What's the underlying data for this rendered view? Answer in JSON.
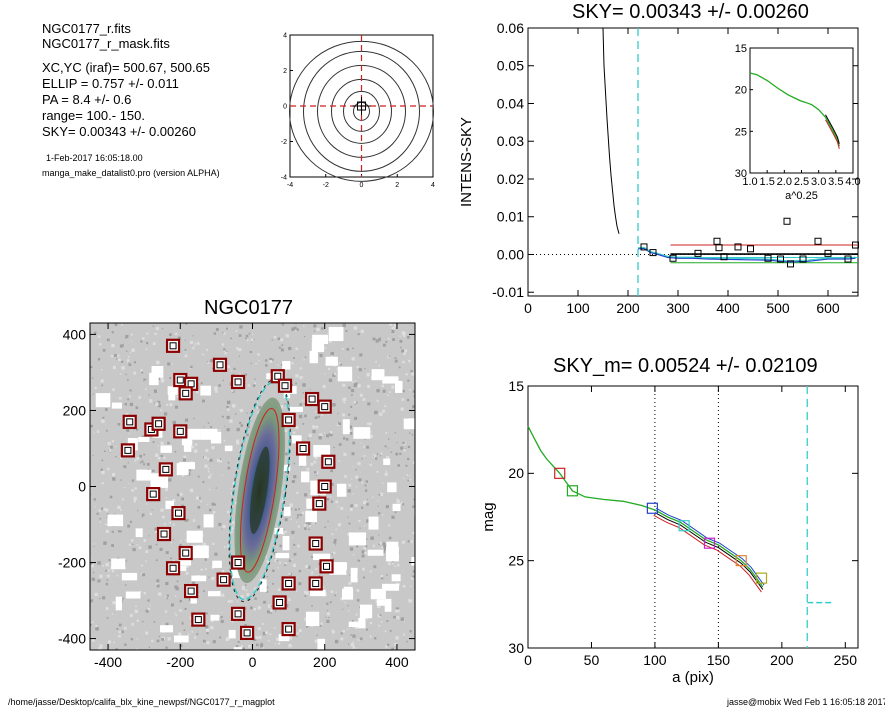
{
  "header": {
    "file_line": "NGC0177_r.fits",
    "mask_line": "NGC0177_r_mask.fits",
    "center_line": "XC,YC (iraf)=   500.67, 500.65",
    "ellip_line": "ELLIP = 0.757 +/- 0.011",
    "pa_line": "PA    =   8.4 +/-   0.6",
    "range_line": "range=  100.-  150.",
    "sky_line": "SKY= 0.00343 +/- 0.00260",
    "date_line": "1-Feb-2017 16:05:18.00",
    "program_line": "manga_make_datalist0.pro (version ALPHA)"
  },
  "footer": {
    "path": "/home/jasse/Desktop/califa_blx_kine_newpsf/NGC0177_r_magplot",
    "user_stamp": "jasse@mobix  Wed Feb  1 16:05:18 2017"
  },
  "colors": {
    "cyan": "#33cccc",
    "red": "#cc2222",
    "green": "#22aa22",
    "blue": "#2244cc",
    "magenta": "#cc22cc",
    "orange": "#dd8833",
    "olive": "#aaaa22",
    "darkred": "#8b0000"
  },
  "chart_data": [
    {
      "id": "contour",
      "type": "contour",
      "xlim": [
        -4,
        4
      ],
      "ylim": [
        -4,
        4
      ],
      "xticks": [
        "-4",
        "-2",
        "0",
        "2",
        "4"
      ],
      "yticks": [
        "-4",
        "-2",
        "0",
        "2",
        "4"
      ]
    },
    {
      "id": "sky",
      "type": "line",
      "title": "SKY= 0.00343 +/- 0.00260",
      "xlabel": "",
      "ylabel": "INTENS-SKY",
      "xlim": [
        0,
        660
      ],
      "ylim": [
        -0.011,
        0.06
      ],
      "xticks": [
        "0",
        "100",
        "200",
        "300",
        "400",
        "500",
        "600"
      ],
      "yticks": [
        "-0.01",
        "0.00",
        "0.01",
        "0.02",
        "0.03",
        "0.04",
        "0.05",
        "0.06"
      ],
      "profile": [
        [
          150,
          0.062
        ],
        [
          152,
          0.05
        ],
        [
          155,
          0.043
        ],
        [
          158,
          0.036
        ],
        [
          160,
          0.032
        ],
        [
          163,
          0.026
        ],
        [
          166,
          0.021
        ],
        [
          169,
          0.017
        ],
        [
          172,
          0.013
        ],
        [
          175,
          0.01
        ],
        [
          178,
          0.0075
        ],
        [
          182,
          0.0055
        ]
      ],
      "tail": [
        [
          220,
          0.0015
        ],
        [
          232,
          0.0016
        ],
        [
          245,
          0.0005
        ],
        [
          260,
          0.0
        ],
        [
          280,
          -0.0008
        ],
        [
          300,
          -0.001
        ],
        [
          330,
          -0.001
        ],
        [
          360,
          -0.0012
        ],
        [
          400,
          -0.0013
        ],
        [
          440,
          -0.0014
        ],
        [
          480,
          -0.0015
        ],
        [
          520,
          -0.002
        ],
        [
          560,
          -0.0018
        ],
        [
          600,
          -0.0012
        ],
        [
          640,
          -0.0012
        ],
        [
          655,
          -0.001
        ]
      ],
      "squares": [
        [
          232,
          0.002
        ],
        [
          250,
          0.0005
        ],
        [
          290,
          -0.001
        ],
        [
          340,
          0.0003
        ],
        [
          378,
          0.0035
        ],
        [
          382,
          0.0018
        ],
        [
          392,
          -0.0006
        ],
        [
          420,
          0.002
        ],
        [
          445,
          0.0015
        ],
        [
          480,
          -0.001
        ],
        [
          505,
          -0.0012
        ],
        [
          518,
          0.0088
        ],
        [
          525,
          -0.0025
        ],
        [
          550,
          -0.0012
        ],
        [
          580,
          0.0035
        ],
        [
          600,
          0.0003
        ],
        [
          640,
          -0.0012
        ],
        [
          655,
          0.0025
        ]
      ],
      "hlines": [
        0.0025,
        0.0001,
        -0.0008,
        -0.0022
      ],
      "vline": 220,
      "inset": {
        "xlim": [
          1.0,
          4.0
        ],
        "ylim": [
          15,
          30
        ],
        "xlabel": "a^0.25",
        "xticks": [
          "1.0",
          "1.5",
          "2.0",
          "2.5",
          "3.0",
          "3.5",
          "4.0"
        ],
        "yticks": [
          "15",
          "20",
          "25",
          "30"
        ],
        "curve": [
          [
            1.0,
            18.0
          ],
          [
            1.2,
            18.2
          ],
          [
            1.5,
            18.9
          ],
          [
            1.8,
            19.8
          ],
          [
            2.1,
            20.6
          ],
          [
            2.3,
            21.0
          ],
          [
            2.45,
            21.3
          ],
          [
            2.6,
            21.5
          ],
          [
            2.8,
            21.8
          ],
          [
            3.0,
            22.4
          ],
          [
            3.2,
            23.3
          ],
          [
            3.4,
            24.8
          ],
          [
            3.55,
            26.0
          ],
          [
            3.6,
            26.8
          ]
        ]
      }
    },
    {
      "id": "image",
      "type": "image",
      "title": "NGC0177",
      "xlim": [
        -450,
        450
      ],
      "ylim": [
        -430,
        430
      ],
      "xticks": [
        "-400",
        "-200",
        "0",
        "200",
        "400"
      ],
      "yticks": [
        "-400",
        "-200",
        "0",
        "200",
        "400"
      ],
      "stars": [
        [
          -220,
          370
        ],
        [
          -90,
          320
        ],
        [
          -40,
          275
        ],
        [
          70,
          290
        ],
        [
          90,
          265
        ],
        [
          -200,
          280
        ],
        [
          -170,
          270
        ],
        [
          -185,
          245
        ],
        [
          -340,
          170
        ],
        [
          -280,
          150
        ],
        [
          -260,
          165
        ],
        [
          -345,
          95
        ],
        [
          -240,
          45
        ],
        [
          -275,
          -20
        ],
        [
          -205,
          -70
        ],
        [
          -200,
          145
        ],
        [
          200,
          210
        ],
        [
          165,
          230
        ],
        [
          100,
          175
        ],
        [
          140,
          100
        ],
        [
          210,
          65
        ],
        [
          200,
          0
        ],
        [
          185,
          -45
        ],
        [
          175,
          -150
        ],
        [
          -245,
          -125
        ],
        [
          -185,
          -175
        ],
        [
          -220,
          -215
        ],
        [
          -170,
          -275
        ],
        [
          -80,
          -245
        ],
        [
          -40,
          -200
        ],
        [
          100,
          -255
        ],
        [
          175,
          -255
        ],
        [
          205,
          -210
        ],
        [
          75,
          -305
        ],
        [
          -150,
          -350
        ],
        [
          -40,
          -335
        ],
        [
          -15,
          -385
        ],
        [
          100,
          -375
        ]
      ],
      "ellipse": {
        "cx": 20,
        "cy": -10,
        "a": 290,
        "b": 70,
        "pa": 8.4
      }
    },
    {
      "id": "mag",
      "type": "line",
      "title": "SKY_m=  0.00524 +/- 0.02109",
      "xlabel": "a (pix)",
      "ylabel": "mag",
      "xlim": [
        0,
        260
      ],
      "ylim": [
        15,
        30
      ],
      "xticks": [
        "0",
        "50",
        "100",
        "150",
        "200",
        "250"
      ],
      "yticks": [
        "15",
        "20",
        "25",
        "30"
      ],
      "curve": [
        [
          0,
          17.3
        ],
        [
          5,
          18.0
        ],
        [
          10,
          18.7
        ],
        [
          15,
          19.2
        ],
        [
          20,
          19.6
        ],
        [
          25,
          20.0
        ],
        [
          30,
          20.5
        ],
        [
          35,
          21.0
        ],
        [
          45,
          21.35
        ],
        [
          60,
          21.5
        ],
        [
          75,
          21.6
        ],
        [
          90,
          21.85
        ],
        [
          100,
          22.1
        ],
        [
          110,
          22.5
        ],
        [
          120,
          22.8
        ],
        [
          130,
          23.3
        ],
        [
          140,
          23.8
        ],
        [
          150,
          24.1
        ],
        [
          160,
          24.6
        ],
        [
          168,
          25.0
        ],
        [
          175,
          25.5
        ],
        [
          180,
          26.0
        ],
        [
          185,
          26.5
        ]
      ],
      "squares": [
        {
          "x": 25,
          "y": 20.0,
          "c": "red"
        },
        {
          "x": 35,
          "y": 21.0,
          "c": "green"
        },
        {
          "x": 98,
          "y": 22.0,
          "c": "blue"
        },
        {
          "x": 123,
          "y": 23.0,
          "c": "cyan"
        },
        {
          "x": 143,
          "y": 24.0,
          "c": "magenta"
        },
        {
          "x": 168,
          "y": 25.0,
          "c": "orange"
        },
        {
          "x": 184,
          "y": 26.0,
          "c": "olive"
        }
      ],
      "dotted_x": [
        100,
        150
      ],
      "dashed_x": 220,
      "sky_level": 27.4
    }
  ]
}
